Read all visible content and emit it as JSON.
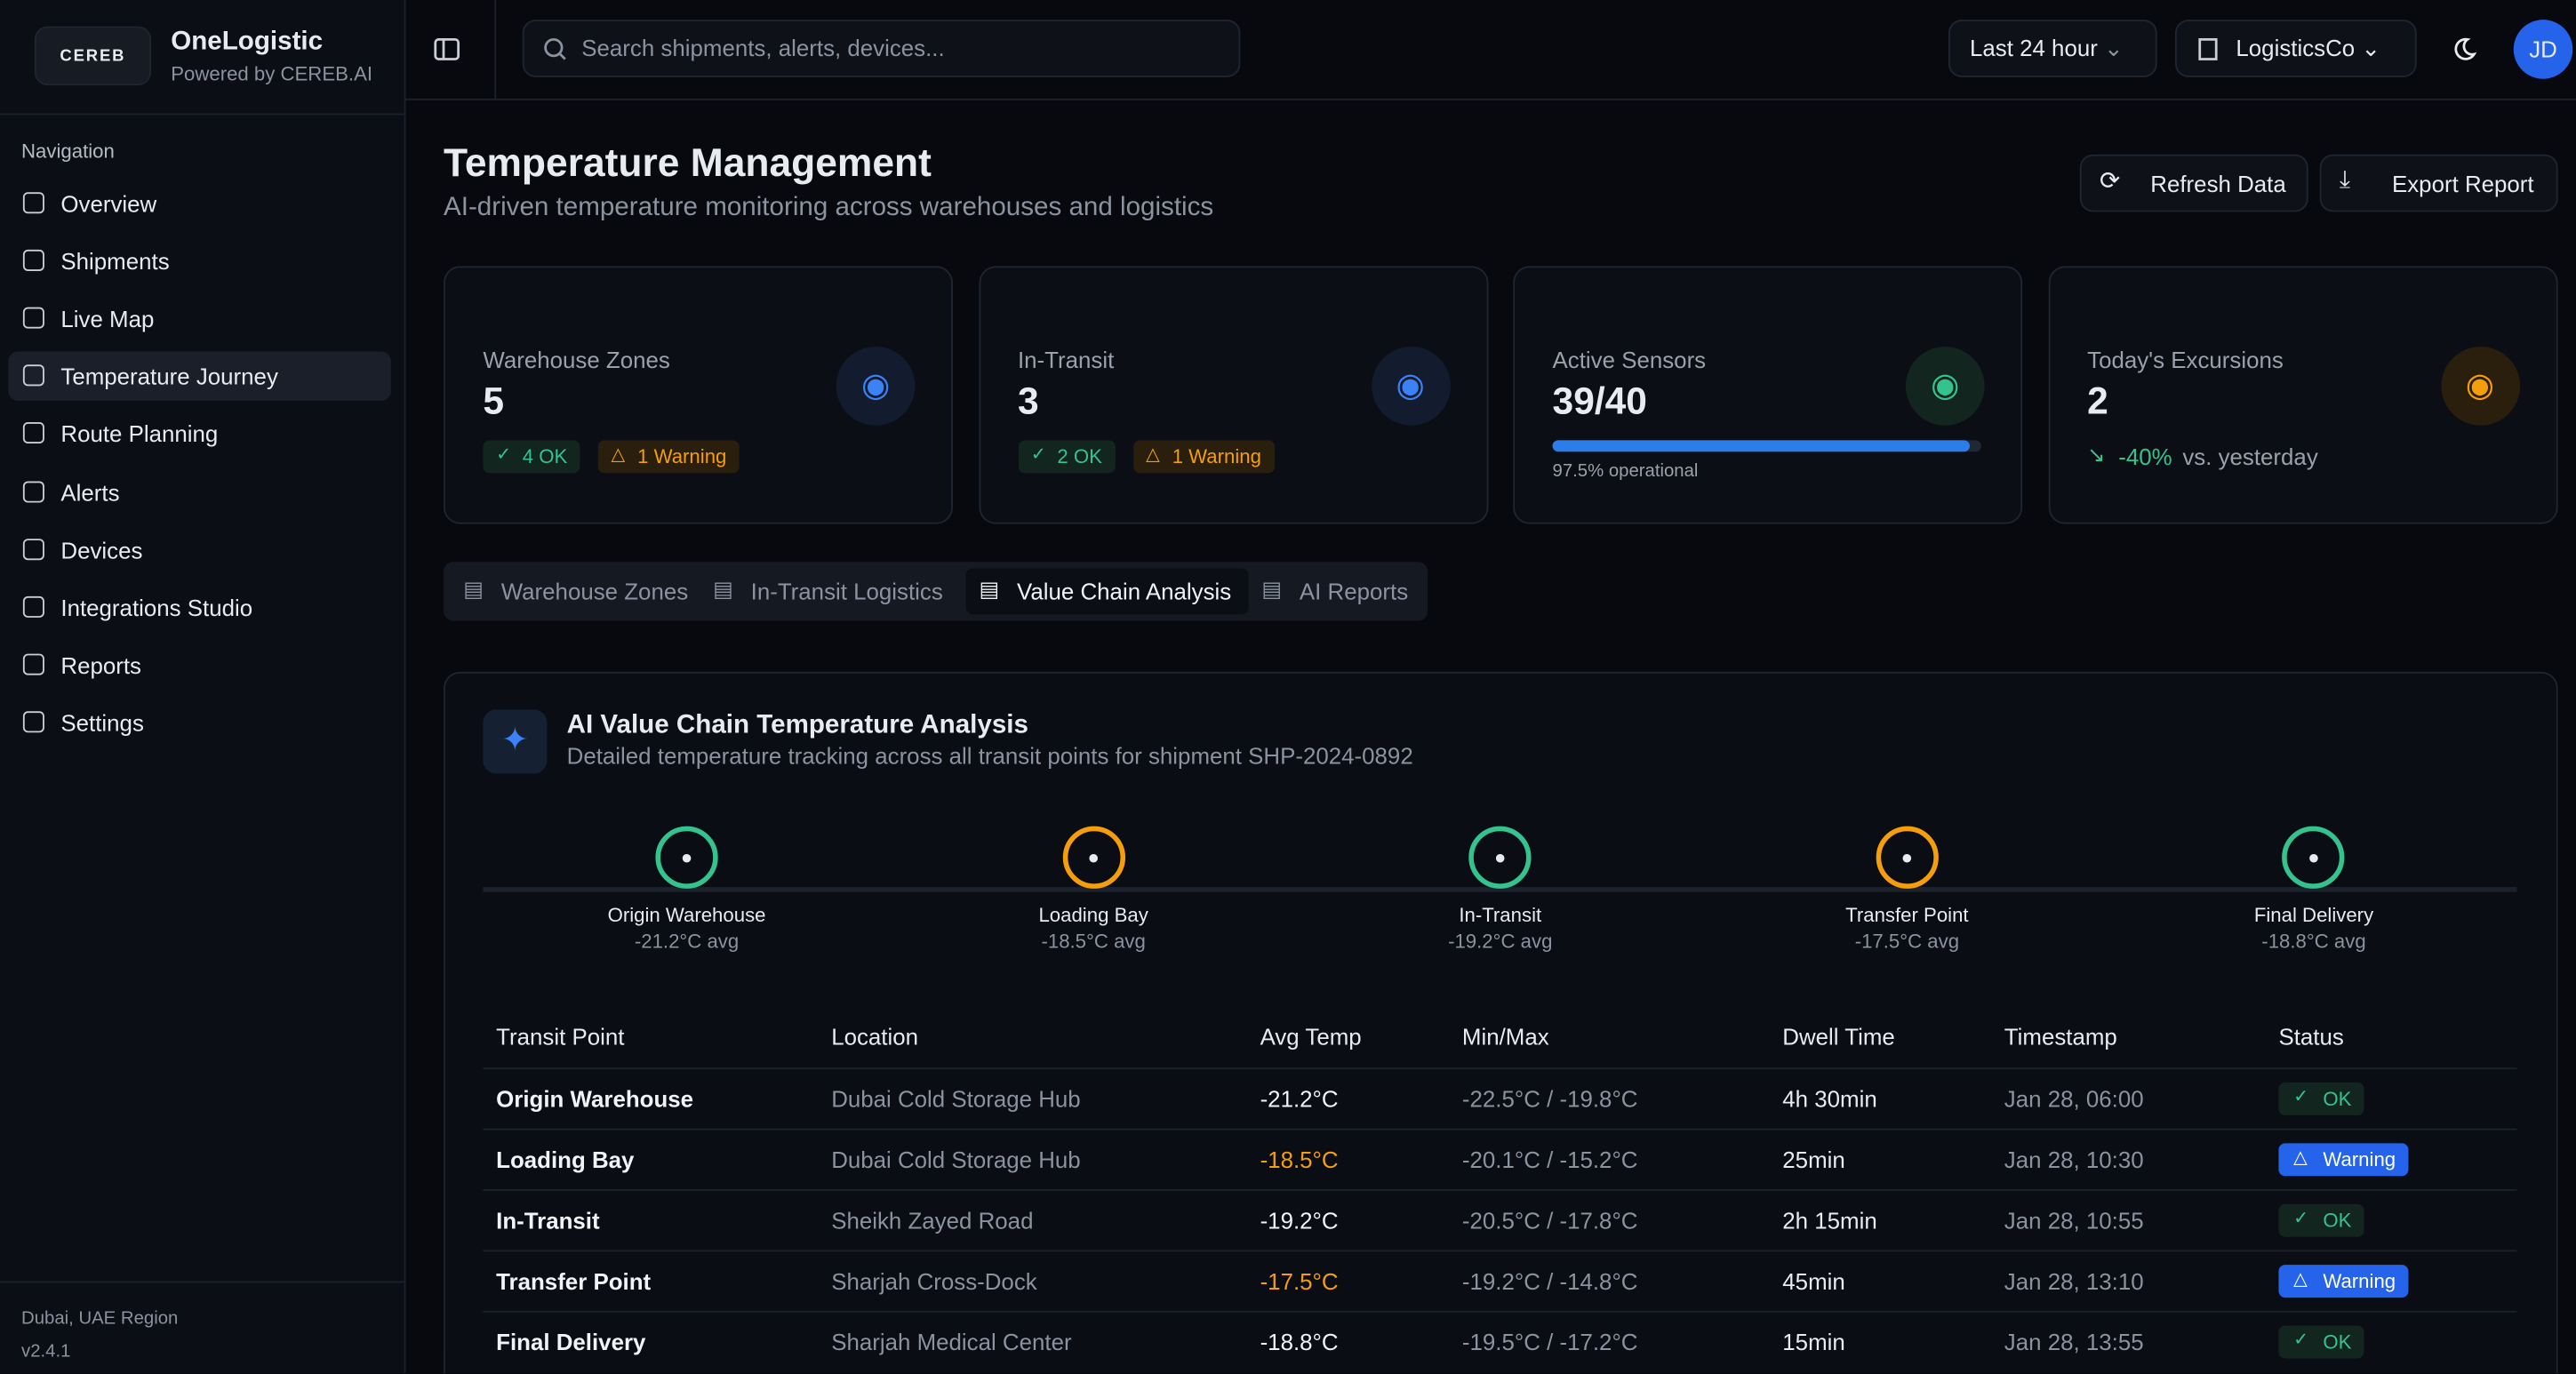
{
  "brand": {
    "logo": "CEREB",
    "name": "OneLogistic",
    "tagline": "Powered by CEREB.AI"
  },
  "sidebar": {
    "section": "Navigation",
    "items": [
      "Overview",
      "Shipments",
      "Live Map",
      "Temperature Journey",
      "Route Planning",
      "Alerts",
      "Devices",
      "Integrations Studio",
      "Reports",
      "Settings"
    ],
    "active": 3,
    "region": "Dubai, UAE Region",
    "version": "v2.4.1"
  },
  "topbar": {
    "search": "Search shipments, alerts, devices...",
    "range": "Last 24 hour",
    "org": "LogisticsCo",
    "avatar": "JD"
  },
  "header": {
    "title": "Temperature Management",
    "subtitle": "AI-driven temperature monitoring across warehouses and logistics",
    "actions": [
      "Refresh Data",
      "Export Report"
    ]
  },
  "stats": [
    {
      "label": "Warehouse Zones",
      "value": "5",
      "tone": "blue",
      "badges": [
        {
          "text": "4 OK",
          "tone": "ok"
        },
        {
          "text": "1 Warning",
          "tone": "warning"
        }
      ]
    },
    {
      "label": "In-Transit",
      "value": "3",
      "tone": "blue",
      "badges": [
        {
          "text": "2 OK",
          "tone": "ok"
        },
        {
          "text": "1 Warning",
          "tone": "warning"
        }
      ]
    },
    {
      "label": "Active Sensors",
      "value": "39/40",
      "tone": "ok",
      "progress": 97.5,
      "note": "97.5% operational"
    },
    {
      "label": "Today's Excursions",
      "value": "2",
      "tone": "warning",
      "trend": "-40%",
      "note": "vs. yesterday"
    }
  ],
  "tabs": {
    "items": [
      "Warehouse Zones",
      "In-Transit Logistics",
      "Value Chain Analysis",
      "AI Reports"
    ],
    "active": 2
  },
  "analysis": {
    "title": "AI Value Chain Temperature Analysis",
    "subtitle": "Detailed temperature tracking across all transit points for shipment SHP-2024-0892",
    "stages": [
      {
        "name": "Origin Warehouse",
        "temp": "-21.2°C avg",
        "tone": "ok"
      },
      {
        "name": "Loading Bay",
        "temp": "-18.5°C avg",
        "tone": "warning"
      },
      {
        "name": "In-Transit",
        "temp": "-19.2°C avg",
        "tone": "ok"
      },
      {
        "name": "Transfer Point",
        "temp": "-17.5°C avg",
        "tone": "warning"
      },
      {
        "name": "Final Delivery",
        "temp": "-18.8°C avg",
        "tone": "ok"
      }
    ],
    "table": {
      "headers": [
        "Transit Point",
        "Location",
        "Avg Temp",
        "Min/Max",
        "Dwell Time",
        "Timestamp",
        "Status"
      ],
      "rows": [
        {
          "tone": "ok",
          "cells": [
            "Origin Warehouse",
            "Dubai Cold Storage Hub",
            "-21.2°C",
            "-22.5°C / -19.8°C",
            "4h 30min",
            "Jan 28, 06:00",
            "OK"
          ]
        },
        {
          "tone": "warning",
          "cells": [
            "Loading Bay",
            "Dubai Cold Storage Hub",
            "-18.5°C",
            "-20.1°C / -15.2°C",
            "25min",
            "Jan 28, 10:30",
            "Warning"
          ]
        },
        {
          "tone": "ok",
          "cells": [
            "In-Transit",
            "Sheikh Zayed Road",
            "-19.2°C",
            "-20.5°C / -17.8°C",
            "2h 15min",
            "Jan 28, 10:55",
            "OK"
          ]
        },
        {
          "tone": "warning",
          "cells": [
            "Transfer Point",
            "Sharjah Cross-Dock",
            "-17.5°C",
            "-19.2°C / -14.8°C",
            "45min",
            "Jan 28, 13:10",
            "Warning"
          ]
        },
        {
          "tone": "ok",
          "cells": [
            "Final Delivery",
            "Sharjah Medical Center",
            "-18.8°C",
            "-19.5°C / -17.2°C",
            "15min",
            "Jan 28, 13:55",
            "OK"
          ]
        }
      ]
    }
  }
}
